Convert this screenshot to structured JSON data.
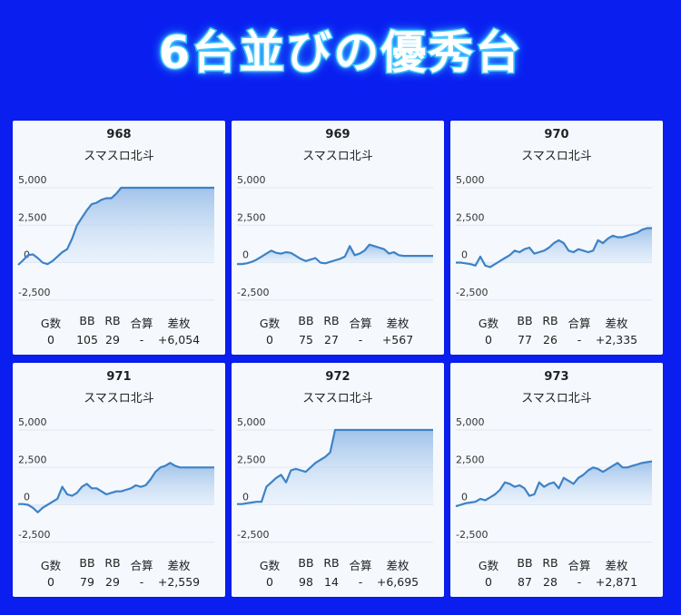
{
  "title": "6台並びの優秀台",
  "stat_headers": [
    "G数",
    "BB",
    "RB",
    "合算",
    "差枚"
  ],
  "colors": {
    "background": "#0a1ef0",
    "line": "#3e82c6",
    "fill": "#a9c9ec"
  },
  "chart_data": [
    {
      "type": "area",
      "title": "968",
      "subtitle": "スマスロ北斗",
      "yticks": [
        "5,000",
        "2,500",
        "0",
        "-2,500"
      ],
      "ylim": [
        -3000,
        5000
      ],
      "y": [
        -150,
        150,
        500,
        550,
        300,
        0,
        -100,
        100,
        400,
        700,
        900,
        1600,
        2500,
        3000,
        3500,
        3900,
        4000,
        4200,
        4300,
        4300,
        4600,
        5000,
        5000,
        5000,
        5000,
        5000,
        5000,
        5000,
        5000,
        5000,
        5000,
        5000,
        5000,
        5000,
        5000,
        5000,
        5000,
        5000,
        5000,
        5000,
        5000
      ],
      "stats": {
        "g": "0",
        "bb": "105",
        "rb": "29",
        "gosan": "-",
        "samai": "+6,054"
      }
    },
    {
      "type": "area",
      "title": "969",
      "subtitle": "スマスロ北斗",
      "yticks": [
        "5,000",
        "2,500",
        "0",
        "-2,500"
      ],
      "ylim": [
        -3000,
        5000
      ],
      "y": [
        -100,
        -100,
        -50,
        50,
        200,
        400,
        600,
        800,
        650,
        600,
        700,
        650,
        450,
        250,
        100,
        200,
        300,
        0,
        -50,
        50,
        150,
        250,
        400,
        1100,
        500,
        600,
        800,
        1200,
        1100,
        1000,
        900,
        600,
        700,
        500,
        450,
        450,
        450,
        450,
        450,
        450,
        450
      ],
      "stats": {
        "g": "0",
        "bb": "75",
        "rb": "27",
        "gosan": "-",
        "samai": "+567"
      }
    },
    {
      "type": "area",
      "title": "970",
      "subtitle": "スマスロ北斗",
      "yticks": [
        "5,000",
        "2,500",
        "0",
        "-2,500"
      ],
      "ylim": [
        -3000,
        5000
      ],
      "y": [
        0,
        0,
        -50,
        -100,
        -200,
        400,
        -200,
        -300,
        -100,
        100,
        300,
        500,
        800,
        700,
        900,
        1000,
        600,
        700,
        800,
        1000,
        1300,
        1500,
        1300,
        800,
        700,
        900,
        800,
        700,
        800,
        1500,
        1300,
        1600,
        1800,
        1700,
        1700,
        1800,
        1900,
        2000,
        2200,
        2300,
        2300
      ],
      "stats": {
        "g": "0",
        "bb": "77",
        "rb": "26",
        "gosan": "-",
        "samai": "+2,335"
      }
    },
    {
      "type": "area",
      "title": "971",
      "subtitle": "スマスロ北斗",
      "yticks": [
        "5,000",
        "2,500",
        "0",
        "-2,500"
      ],
      "ylim": [
        -3000,
        5000
      ],
      "y": [
        50,
        50,
        0,
        -200,
        -500,
        -200,
        0,
        200,
        400,
        1200,
        700,
        600,
        800,
        1200,
        1400,
        1100,
        1100,
        900,
        700,
        800,
        900,
        900,
        1000,
        1100,
        1300,
        1200,
        1300,
        1700,
        2200,
        2500,
        2600,
        2800,
        2600,
        2500,
        2500,
        2500,
        2500,
        2500,
        2500,
        2500,
        2500
      ],
      "stats": {
        "g": "0",
        "bb": "79",
        "rb": "29",
        "gosan": "-",
        "samai": "+2,559"
      }
    },
    {
      "type": "area",
      "title": "972",
      "subtitle": "スマスロ北斗",
      "yticks": [
        "5,000",
        "2,500",
        "0",
        "-2,500"
      ],
      "ylim": [
        -3000,
        5000
      ],
      "y": [
        50,
        50,
        100,
        150,
        200,
        200,
        1200,
        1500,
        1800,
        2000,
        1500,
        2300,
        2400,
        2300,
        2200,
        2500,
        2800,
        3000,
        3200,
        3500,
        5000,
        5000,
        5000,
        5000,
        5000,
        5000,
        5000,
        5000,
        5000,
        5000,
        5000,
        5000,
        5000,
        5000,
        5000,
        5000,
        5000,
        5000,
        5000,
        5000,
        5000
      ],
      "stats": {
        "g": "0",
        "bb": "98",
        "rb": "14",
        "gosan": "-",
        "samai": "+6,695"
      }
    },
    {
      "type": "area",
      "title": "973",
      "subtitle": "スマスロ北斗",
      "yticks": [
        "5,000",
        "2,500",
        "0",
        "-2,500"
      ],
      "ylim": [
        -3000,
        5000
      ],
      "y": [
        -100,
        0,
        100,
        150,
        200,
        400,
        300,
        500,
        700,
        1000,
        1500,
        1400,
        1200,
        1300,
        1100,
        600,
        700,
        1500,
        1200,
        1400,
        1500,
        1100,
        1800,
        1600,
        1400,
        1800,
        2000,
        2300,
        2500,
        2400,
        2200,
        2400,
        2600,
        2800,
        2500,
        2500,
        2600,
        2700,
        2800,
        2850,
        2900
      ],
      "stats": {
        "g": "0",
        "bb": "87",
        "rb": "28",
        "gosan": "-",
        "samai": "+2,871"
      }
    }
  ]
}
